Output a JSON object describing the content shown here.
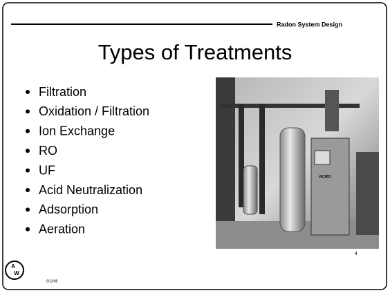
{
  "header": {
    "text": "Radon System Design"
  },
  "title": "Types of Treatments",
  "bullets": [
    "Filtration",
    "Oxidation / Filtration",
    "Ion Exchange",
    "RO",
    "UF",
    "Acid Neutralization",
    "Adsorption",
    "Aeration"
  ],
  "logo": {
    "letters": [
      "A",
      "W"
    ]
  },
  "photo": {
    "label": "ACRO"
  },
  "footer": {
    "date": "6/11/08",
    "page": "4"
  }
}
